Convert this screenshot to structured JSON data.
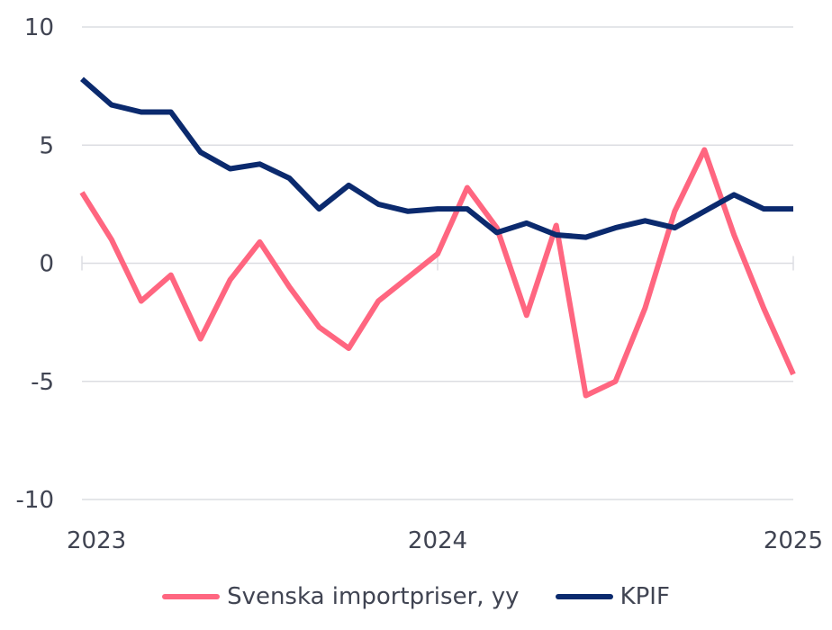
{
  "chart_data": {
    "type": "line",
    "y_ticks": [
      10,
      5,
      0,
      -5,
      -10
    ],
    "x_ticks": [
      "2023",
      "2024",
      "2025"
    ],
    "x": [
      "2023-01",
      "2023-02",
      "2023-03",
      "2023-04",
      "2023-05",
      "2023-06",
      "2023-07",
      "2023-08",
      "2023-09",
      "2023-10",
      "2023-11",
      "2023-12",
      "2024-01",
      "2024-02",
      "2024-03",
      "2024-04",
      "2024-05",
      "2024-06",
      "2024-07",
      "2024-08",
      "2024-09",
      "2024-10",
      "2024-11",
      "2024-12",
      "2025-01"
    ],
    "ylim": [
      -10,
      10
    ],
    "grid": true,
    "legend_position": "bottom",
    "series": [
      {
        "name": "Svenska importpriser, yy",
        "color": "#ff6680",
        "values": [
          3.0,
          1.0,
          -1.6,
          -0.5,
          -3.2,
          -0.7,
          0.9,
          -1.0,
          -2.7,
          -3.6,
          -1.6,
          -0.6,
          0.4,
          3.2,
          1.5,
          -2.2,
          1.6,
          -5.6,
          -5.0,
          -1.9,
          2.2,
          4.8,
          1.2,
          -1.9,
          -4.7
        ]
      },
      {
        "name": "KPIF",
        "color": "#0b2a6e",
        "values": [
          7.8,
          6.7,
          6.4,
          6.4,
          4.7,
          4.0,
          4.2,
          3.6,
          2.3,
          3.3,
          2.5,
          2.2,
          2.3,
          2.3,
          1.3,
          1.7,
          1.2,
          1.1,
          1.5,
          1.8,
          1.5,
          2.2,
          2.9,
          2.3,
          2.3
        ]
      }
    ]
  }
}
